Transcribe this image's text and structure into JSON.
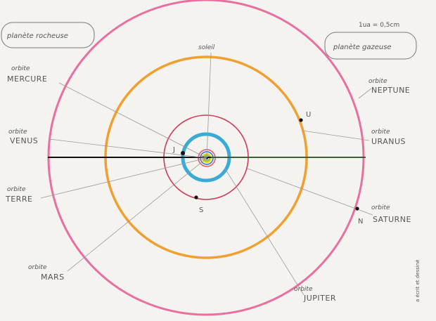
{
  "scale": "1ua = 0,5cm",
  "legend": {
    "rocky": "planète rocheuse",
    "gas": "planète gazeuse"
  },
  "sun_label": "soleil",
  "orbits": [
    {
      "prefix": "orbite",
      "name": "MERCURE",
      "color": "#7ec23a"
    },
    {
      "prefix": "orbite",
      "name": "VENUS",
      "color": "#f0d21e"
    },
    {
      "prefix": "orbite",
      "name": "TERRE",
      "color": "#2a6cc8"
    },
    {
      "prefix": "orbite",
      "name": "MARS",
      "color": "#e35a6c"
    },
    {
      "prefix": "orbite",
      "name": "JUPITER",
      "color": "#3aaad6"
    },
    {
      "prefix": "orbite",
      "name": "SATURNE",
      "color": "#d13a58"
    },
    {
      "prefix": "orbite",
      "name": "URANUS",
      "color": "#f0a030"
    },
    {
      "prefix": "orbite",
      "name": "NEPTUNE",
      "color": "#e86fa0"
    }
  ],
  "planet_markers": {
    "jupiter": "J",
    "saturn": "S",
    "uranus": "U",
    "neptune": "N"
  },
  "signature": "a écrit et dessiné"
}
